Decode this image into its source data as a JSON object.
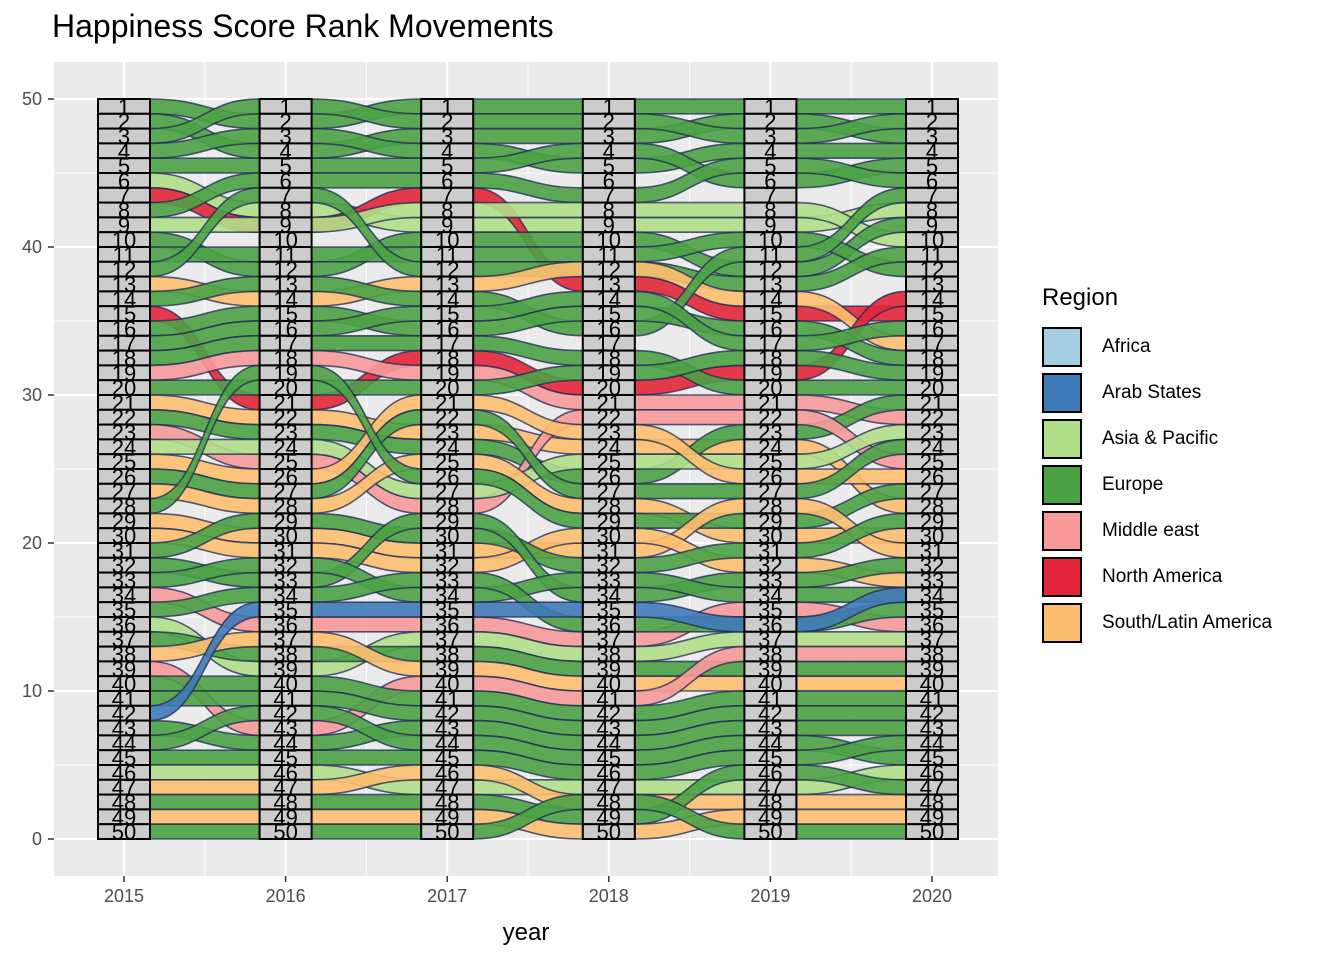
{
  "chart_data": {
    "type": "alluvial",
    "title": "Happiness Score Rank Movements",
    "xlabel": "year",
    "ylabel": "",
    "x": [
      "2015",
      "2016",
      "2017",
      "2018",
      "2019",
      "2020"
    ],
    "ylim": [
      -2.5,
      52.5
    ],
    "yticks": [
      0,
      10,
      20,
      30,
      40,
      50
    ],
    "grid": true,
    "legend": {
      "title": "Region",
      "position": "right"
    },
    "strata_labels": [
      "1",
      "2",
      "3",
      "4",
      "5",
      "6",
      "7",
      "8",
      "9",
      "10",
      "11",
      "12",
      "13",
      "14",
      "15",
      "16",
      "17",
      "18",
      "19",
      "20",
      "21",
      "22",
      "23",
      "24",
      "25",
      "26",
      "27",
      "28",
      "29",
      "30",
      "31",
      "32",
      "33",
      "34",
      "35",
      "36",
      "37",
      "38",
      "39",
      "40",
      "41",
      "42",
      "43",
      "44",
      "45",
      "46",
      "47",
      "48",
      "49",
      "50"
    ],
    "regions": [
      {
        "name": "Africa",
        "color": "#A6CEE3"
      },
      {
        "name": "Arab States",
        "color": "#3F7AB8"
      },
      {
        "name": "Asia & Pacific",
        "color": "#B2DF8A"
      },
      {
        "name": "Europe",
        "color": "#4BA245"
      },
      {
        "name": "Middle east",
        "color": "#F89A9A"
      },
      {
        "name": "North America",
        "color": "#E3263A"
      },
      {
        "name": "South/Latin America",
        "color": "#FDBF6F"
      }
    ],
    "flows": [
      {
        "region": "Europe",
        "ranks": [
          1,
          2,
          1,
          1,
          1,
          1
        ]
      },
      {
        "region": "Europe",
        "ranks": [
          2,
          4,
          3,
          3,
          2,
          3
        ]
      },
      {
        "region": "Europe",
        "ranks": [
          3,
          1,
          2,
          2,
          3,
          2
        ]
      },
      {
        "region": "Europe",
        "ranks": [
          4,
          3,
          4,
          5,
          4,
          4
        ]
      },
      {
        "region": "Europe",
        "ranks": [
          5,
          5,
          5,
          4,
          6,
          5
        ]
      },
      {
        "region": "Asia & Pacific",
        "ranks": [
          6,
          8,
          9,
          9,
          9,
          8
        ]
      },
      {
        "region": "North America",
        "ranks": [
          7,
          9,
          7,
          13,
          15,
          15
        ]
      },
      {
        "region": "Europe",
        "ranks": [
          8,
          6,
          6,
          7,
          5,
          6
        ]
      },
      {
        "region": "Asia & Pacific",
        "ranks": [
          9,
          9,
          8,
          8,
          8,
          10
        ]
      },
      {
        "region": "Europe",
        "ranks": [
          10,
          12,
          10,
          10,
          12,
          9
        ]
      },
      {
        "region": "Europe",
        "ranks": [
          11,
          11,
          11,
          11,
          10,
          12
        ]
      },
      {
        "region": "Europe",
        "ranks": [
          12,
          7,
          12,
          12,
          13,
          11
        ]
      },
      {
        "region": "South/Latin America",
        "ranks": [
          13,
          14,
          13,
          12,
          14,
          17
        ]
      },
      {
        "region": "Europe",
        "ranks": [
          14,
          13,
          14,
          16,
          11,
          7
        ]
      },
      {
        "region": "North America",
        "ranks": [
          15,
          21,
          18,
          20,
          19,
          14
        ]
      },
      {
        "region": "Europe",
        "ranks": [
          16,
          15,
          16,
          15,
          16,
          18
        ]
      },
      {
        "region": "Europe",
        "ranks": [
          17,
          16,
          15,
          14,
          17,
          16
        ]
      },
      {
        "region": "Europe",
        "ranks": [
          18,
          17,
          17,
          18,
          20,
          20
        ]
      },
      {
        "region": "Middle east",
        "ranks": [
          19,
          18,
          19,
          21,
          21,
          22
        ]
      },
      {
        "region": "Europe",
        "ranks": [
          20,
          20,
          20,
          19,
          18,
          19
        ]
      },
      {
        "region": "South/Latin America",
        "ranks": [
          21,
          22,
          23,
          24,
          24,
          28
        ]
      },
      {
        "region": "Europe",
        "ranks": [
          22,
          23,
          24,
          26,
          23,
          21
        ]
      },
      {
        "region": "Middle east",
        "ranks": [
          23,
          25,
          28,
          22,
          22,
          25
        ]
      },
      {
        "region": "Asia & Pacific",
        "ranks": [
          24,
          24,
          27,
          25,
          25,
          23
        ]
      },
      {
        "region": "South/Latin America",
        "ranks": [
          25,
          26,
          21,
          23,
          26,
          26
        ]
      },
      {
        "region": "Europe",
        "ranks": [
          26,
          27,
          22,
          27,
          27,
          24
        ]
      },
      {
        "region": "South/Latin America",
        "ranks": [
          27,
          28,
          25,
          28,
          30,
          30
        ]
      },
      {
        "region": "Europe",
        "ranks": [
          28,
          19,
          26,
          29,
          29,
          27
        ]
      },
      {
        "region": "South/Latin America",
        "ranks": [
          29,
          30,
          31,
          31,
          28,
          31
        ]
      },
      {
        "region": "South/Latin America",
        "ranks": [
          30,
          31,
          32,
          30,
          32,
          33
        ]
      },
      {
        "region": "Europe",
        "ranks": [
          31,
          29,
          30,
          32,
          31,
          29
        ]
      },
      {
        "region": "Europe",
        "ranks": [
          32,
          33,
          29,
          34,
          33,
          32
        ]
      },
      {
        "region": "Europe",
        "ranks": [
          33,
          32,
          34,
          33,
          34,
          34
        ]
      },
      {
        "region": "Middle east",
        "ranks": [
          34,
          36,
          36,
          37,
          35,
          36
        ]
      },
      {
        "region": "Europe",
        "ranks": [
          35,
          34,
          33,
          36,
          36,
          35
        ]
      },
      {
        "region": "Asia & Pacific",
        "ranks": [
          36,
          39,
          37,
          38,
          37,
          37
        ]
      },
      {
        "region": "Europe",
        "ranks": [
          37,
          38,
          38,
          39,
          39,
          39
        ]
      },
      {
        "region": "South/Latin America",
        "ranks": [
          38,
          37,
          39,
          40,
          40,
          40
        ]
      },
      {
        "region": "Middle east",
        "ranks": [
          39,
          43,
          40,
          41,
          38,
          38
        ]
      },
      {
        "region": "Europe",
        "ranks": [
          40,
          40,
          41,
          42,
          41,
          41
        ]
      },
      {
        "region": "Europe",
        "ranks": [
          41,
          41,
          42,
          43,
          42,
          42
        ]
      },
      {
        "region": "Arab States",
        "ranks": [
          42,
          35,
          35,
          35,
          36,
          34
        ]
      },
      {
        "region": "Europe",
        "ranks": [
          43,
          44,
          43,
          44,
          43,
          43
        ]
      },
      {
        "region": "Europe",
        "ranks": [
          44,
          42,
          44,
          45,
          44,
          45
        ]
      },
      {
        "region": "Europe",
        "ranks": [
          45,
          45,
          45,
          46,
          45,
          44
        ]
      },
      {
        "region": "Asia & Pacific",
        "ranks": [
          46,
          46,
          47,
          47,
          47,
          46
        ]
      },
      {
        "region": "South/Latin America",
        "ranks": [
          47,
          47,
          46,
          48,
          48,
          48
        ]
      },
      {
        "region": "Europe",
        "ranks": [
          48,
          48,
          48,
          49,
          46,
          47
        ]
      },
      {
        "region": "South/Latin America",
        "ranks": [
          49,
          49,
          49,
          50,
          49,
          49
        ]
      },
      {
        "region": "Europe",
        "ranks": [
          50,
          50,
          50,
          48,
          50,
          50
        ]
      }
    ]
  }
}
